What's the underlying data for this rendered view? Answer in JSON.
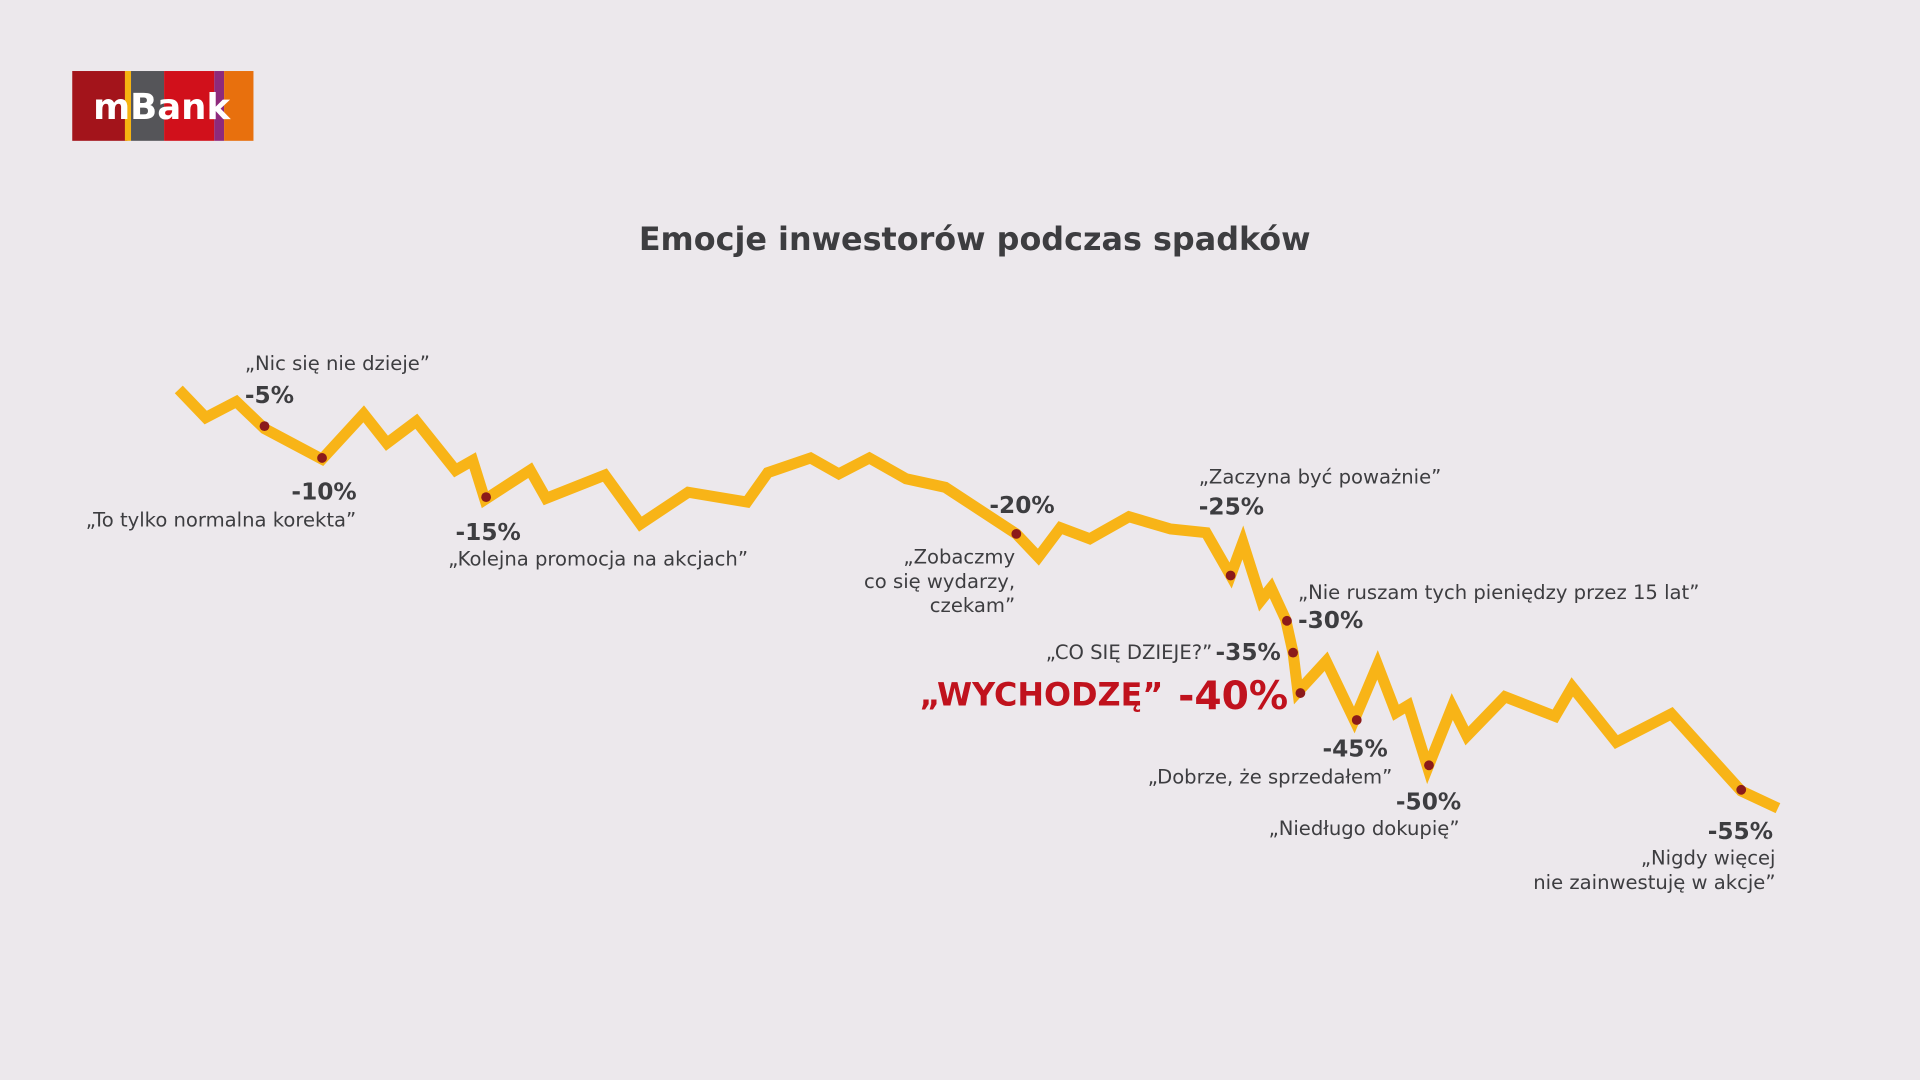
{
  "logo": "mBank",
  "title": "Emocje inwestorów podczas spadków",
  "annotations": [
    {
      "value": "-5%",
      "quote": [
        "„Nic się nie dzieje”"
      ]
    },
    {
      "value": "-10%",
      "quote": [
        "„To tylko normalna korekta”"
      ]
    },
    {
      "value": "-15%",
      "quote": [
        "„Kolejna promocja na akcjach”"
      ]
    },
    {
      "value": "-20%",
      "quote": [
        "„Zobaczmy",
        "co się wydarzy,",
        "czekam”"
      ]
    },
    {
      "value": "-25%",
      "quote": [
        "„Zaczyna być poważnie”"
      ]
    },
    {
      "value": "-30%",
      "quote": [
        "„Nie ruszam tych pieniędzy przez 15 lat”"
      ]
    },
    {
      "value": "-35%",
      "quote": [
        "„CO SIĘ DZIEJE?”"
      ]
    },
    {
      "value": "-40%",
      "quote": [
        "„WYCHODZĘ”"
      ]
    },
    {
      "value": "-45%",
      "quote": [
        "„Dobrze, że sprzedałem”"
      ]
    },
    {
      "value": "-50%",
      "quote": [
        "„Niedługo dokupię”"
      ]
    },
    {
      "value": "-55%",
      "quote": [
        "„Nigdy więcej",
        "nie zainwestuję w akcje”"
      ]
    }
  ]
}
